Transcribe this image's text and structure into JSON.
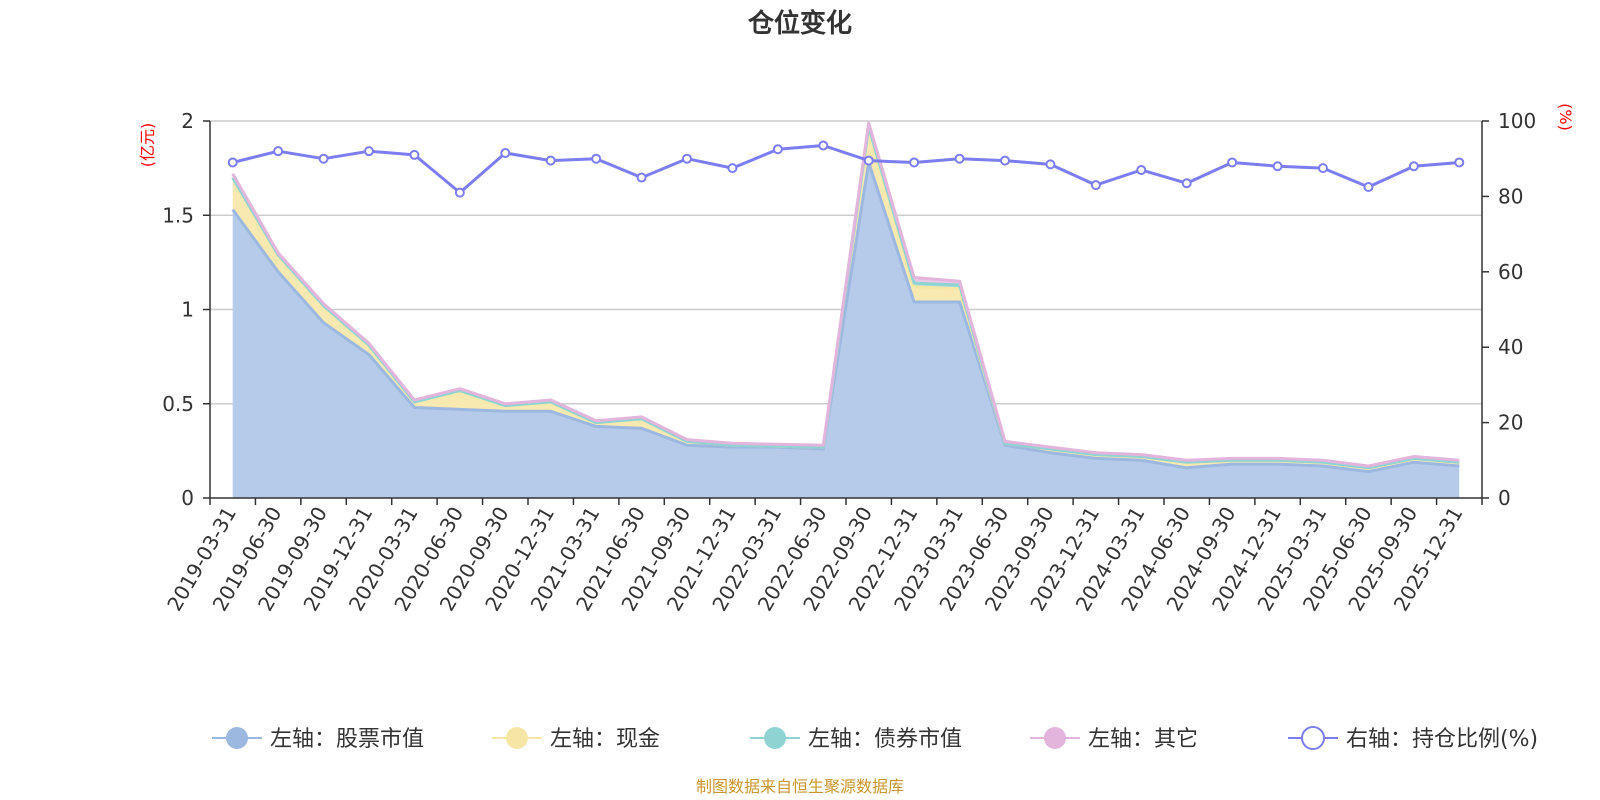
{
  "chart_data": {
    "type": "area",
    "title": "仓位变化",
    "source": "制图数据来自恒生聚源数据库",
    "left_axis": {
      "unit": "(亿元)",
      "ylim": [
        0,
        2
      ],
      "ticks": [
        "0",
        "0.5",
        "1",
        "1.5",
        "2"
      ]
    },
    "right_axis": {
      "unit": "(%)",
      "ylim": [
        0,
        100
      ],
      "ticks": [
        "0",
        "20",
        "40",
        "60",
        "80",
        "100"
      ]
    },
    "grid": true,
    "legend_position": "bottom",
    "categories": [
      "2019-03-31",
      "2019-06-30",
      "2019-09-30",
      "2019-12-31",
      "2020-03-31",
      "2020-06-30",
      "2020-09-30",
      "2020-12-31",
      "2021-03-31",
      "2021-06-30",
      "2021-09-30",
      "2021-12-31",
      "2022-03-31",
      "2022-06-30",
      "2022-09-30",
      "2022-12-31",
      "2023-03-31",
      "2023-06-30",
      "2023-09-30",
      "2023-12-31",
      "2024-03-31",
      "2024-06-30",
      "2024-09-30",
      "2024-12-31",
      "2025-03-31",
      "2025-06-30",
      "2025-09-30",
      "2025-12-31"
    ],
    "series": [
      {
        "name": "左轴：股票市值",
        "axis": "left",
        "color": "#9db8e0",
        "fill": "#b5cbe9",
        "values": [
          1.53,
          1.2,
          0.93,
          0.76,
          0.48,
          0.47,
          0.46,
          0.46,
          0.38,
          0.37,
          0.28,
          0.27,
          0.27,
          0.26,
          1.78,
          1.04,
          1.04,
          0.28,
          0.24,
          0.21,
          0.2,
          0.16,
          0.18,
          0.18,
          0.17,
          0.14,
          0.19,
          0.17
        ]
      },
      {
        "name": "左轴：现金",
        "axis": "left",
        "color": "#f5e6a6",
        "fill": "#f8e9b0",
        "values": [
          0.17,
          0.09,
          0.09,
          0.05,
          0.03,
          0.1,
          0.03,
          0.05,
          0.02,
          0.05,
          0.02,
          0.01,
          0.005,
          0.01,
          0.19,
          0.08,
          0.07,
          0.01,
          0.02,
          0.02,
          0.02,
          0.03,
          0.02,
          0.02,
          0.02,
          0.02,
          0.02,
          0.02
        ]
      },
      {
        "name": "左轴：债券市值",
        "axis": "left",
        "color": "#8fd3d3",
        "fill": "#a9dedc",
        "values": [
          0,
          0,
          0,
          0,
          0,
          0,
          0,
          0,
          0,
          0,
          0,
          0,
          0,
          0,
          0,
          0.02,
          0.02,
          0,
          0,
          0,
          0,
          0,
          0,
          0,
          0,
          0,
          0,
          0
        ]
      },
      {
        "name": "左轴：其它",
        "axis": "left",
        "color": "#e3b4dc",
        "fill": "#ecc8e6",
        "values": [
          0.02,
          0.01,
          0.01,
          0.01,
          0.01,
          0.01,
          0.01,
          0.01,
          0.01,
          0.01,
          0.01,
          0.01,
          0.01,
          0.01,
          0.02,
          0.03,
          0.02,
          0.01,
          0.01,
          0.01,
          0.01,
          0.01,
          0.01,
          0.01,
          0.01,
          0.01,
          0.01,
          0.01
        ]
      },
      {
        "name": "右轴：持仓比例(%)",
        "axis": "right",
        "color": "#7b7df0",
        "fill": "#ffffff",
        "values": [
          89,
          92,
          90,
          92,
          91,
          81,
          91.5,
          89.5,
          90,
          85,
          90,
          87.5,
          92.5,
          93.5,
          89.5,
          89,
          90,
          89.5,
          88.5,
          83,
          87,
          83.5,
          89,
          88,
          87.5,
          82.5,
          88,
          89
        ]
      }
    ]
  }
}
